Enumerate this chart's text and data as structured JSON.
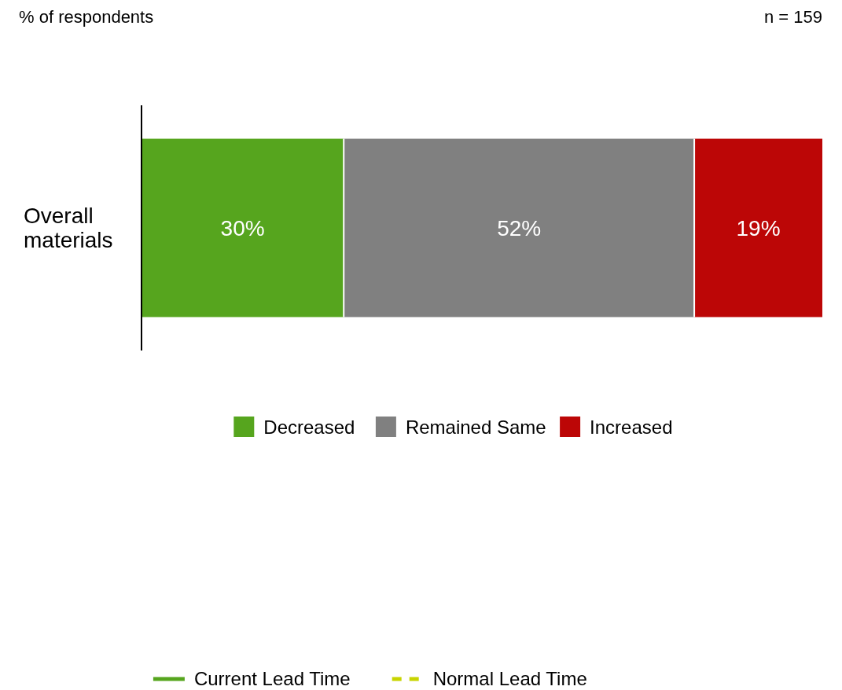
{
  "chart_data": {
    "type": "bar",
    "orientation": "horizontal",
    "stacked": true,
    "categories": [
      "Overall materials"
    ],
    "series": [
      {
        "name": "Decreased",
        "color": "#56a51e",
        "values": [
          30
        ],
        "value_labels": [
          "30%"
        ]
      },
      {
        "name": "Remained Same",
        "color": "#808080",
        "values": [
          52
        ],
        "value_labels": [
          "52%"
        ]
      },
      {
        "name": "Increased",
        "color": "#bc0606",
        "values": [
          19
        ],
        "value_labels": [
          "19%"
        ]
      },
      {
        "name": "Current Lead Time",
        "type": "line",
        "color": "#56a51e",
        "line_style": "solid",
        "values": [
          null
        ]
      },
      {
        "name": "Normal Lead Time",
        "type": "line",
        "color": "#c8d400",
        "line_style": "dashed",
        "values": [
          null
        ]
      }
    ],
    "annotations": [
      "% of respondents",
      "n = 159"
    ],
    "legend": "bottom"
  }
}
